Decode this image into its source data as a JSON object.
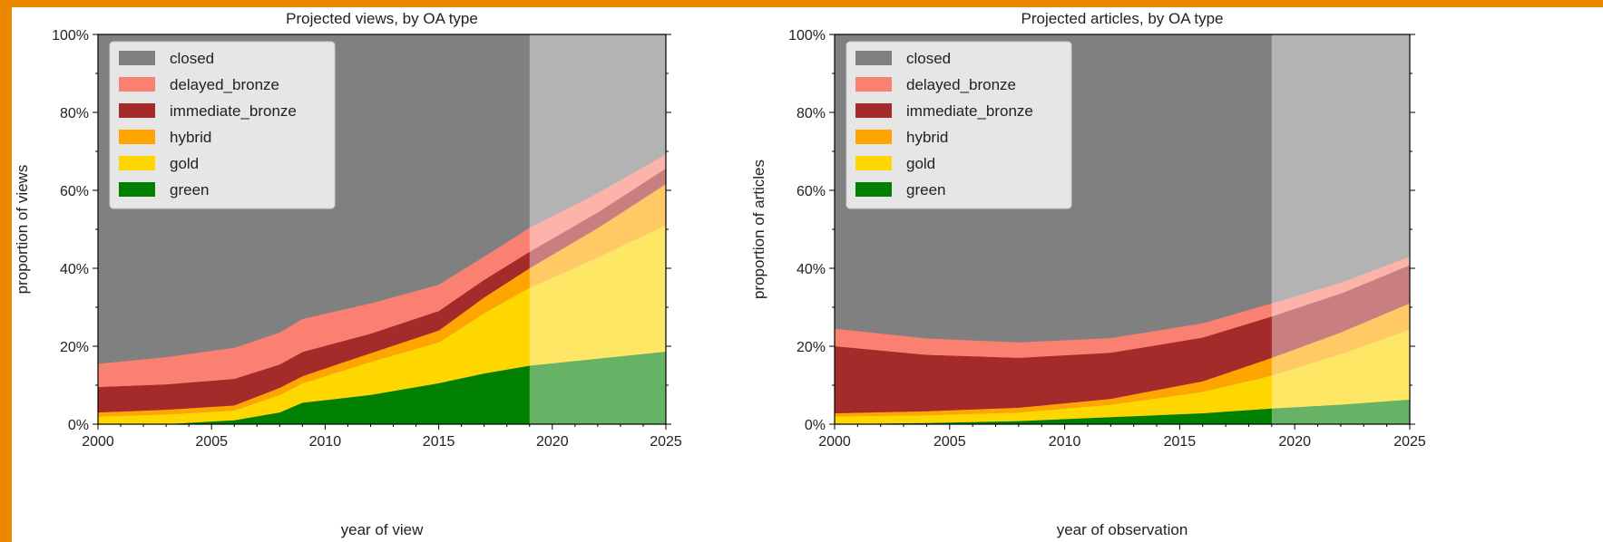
{
  "colors": {
    "frame_border": "#EE8700",
    "figure_bg": "#FFFFFF",
    "plot_bg": "#808080",
    "projection_overlay": "#FFFFFF"
  },
  "chart_data": [
    {
      "type": "area",
      "stacked": true,
      "title": "Projected views, by OA type",
      "xlabel": "year of view",
      "ylabel": "proportion of views",
      "xlim": [
        2000,
        2025
      ],
      "ylim": [
        0,
        1
      ],
      "x_ticks": [
        2000,
        2005,
        2010,
        2015,
        2020,
        2025
      ],
      "x_tick_labels": [
        "2000",
        "2005",
        "2010",
        "2015",
        "2020",
        "2025"
      ],
      "y_ticks": [
        0,
        0.2,
        0.4,
        0.6,
        0.8,
        1.0
      ],
      "y_tick_labels": [
        "0%",
        "20%",
        "40%",
        "60%",
        "80%",
        "100%"
      ],
      "projection_start": 2019,
      "legend_position": "top-left",
      "grid": false,
      "x": [
        2000,
        2003,
        2006,
        2008,
        2009,
        2012,
        2015,
        2017,
        2019,
        2022,
        2025
      ],
      "series": [
        {
          "name": "green",
          "color": "#008000",
          "values": [
            0.0,
            0.0,
            0.01,
            0.03,
            0.055,
            0.075,
            0.105,
            0.13,
            0.15,
            0.168,
            0.186
          ]
        },
        {
          "name": "gold",
          "color": "#FFD700",
          "values": [
            0.02,
            0.025,
            0.025,
            0.045,
            0.05,
            0.085,
            0.105,
            0.155,
            0.2,
            0.26,
            0.325
          ]
        },
        {
          "name": "hybrid",
          "color": "#FFA500",
          "values": [
            0.01,
            0.012,
            0.013,
            0.018,
            0.018,
            0.022,
            0.03,
            0.04,
            0.05,
            0.075,
            0.105
          ]
        },
        {
          "name": "immediate_bronze",
          "color": "#A52A2A",
          "values": [
            0.065,
            0.065,
            0.068,
            0.06,
            0.062,
            0.05,
            0.05,
            0.045,
            0.042,
            0.04,
            0.04
          ]
        },
        {
          "name": "delayed_bronze",
          "color": "#FA8072",
          "values": [
            0.06,
            0.07,
            0.08,
            0.082,
            0.085,
            0.078,
            0.068,
            0.06,
            0.062,
            0.05,
            0.036
          ]
        },
        {
          "name": "closed",
          "color": "#808080",
          "values": [
            0.845,
            0.828,
            0.804,
            0.765,
            0.73,
            0.69,
            0.642,
            0.57,
            0.496,
            0.407,
            0.308
          ]
        }
      ]
    },
    {
      "type": "area",
      "stacked": true,
      "title": "Projected articles, by OA type",
      "xlabel": "year of observation",
      "ylabel": "proportion of articles",
      "xlim": [
        2000,
        2025
      ],
      "ylim": [
        0,
        1
      ],
      "x_ticks": [
        2000,
        2005,
        2010,
        2015,
        2020,
        2025
      ],
      "x_tick_labels": [
        "2000",
        "2005",
        "2010",
        "2015",
        "2020",
        "2025"
      ],
      "y_ticks": [
        0,
        0.2,
        0.4,
        0.6,
        0.8,
        1.0
      ],
      "y_tick_labels": [
        "0%",
        "20%",
        "40%",
        "60%",
        "80%",
        "100%"
      ],
      "projection_start": 2019,
      "legend_position": "top-left",
      "grid": false,
      "x": [
        2000,
        2004,
        2008,
        2012,
        2016,
        2019,
        2022,
        2025
      ],
      "series": [
        {
          "name": "green",
          "color": "#008000",
          "values": [
            0.0,
            0.003,
            0.008,
            0.018,
            0.028,
            0.04,
            0.05,
            0.063
          ]
        },
        {
          "name": "gold",
          "color": "#FFD700",
          "values": [
            0.02,
            0.02,
            0.022,
            0.032,
            0.055,
            0.085,
            0.13,
            0.18
          ]
        },
        {
          "name": "hybrid",
          "color": "#FFA500",
          "values": [
            0.008,
            0.01,
            0.012,
            0.015,
            0.027,
            0.045,
            0.055,
            0.067
          ]
        },
        {
          "name": "immediate_bronze",
          "color": "#A52A2A",
          "values": [
            0.172,
            0.145,
            0.128,
            0.118,
            0.112,
            0.106,
            0.1,
            0.098
          ]
        },
        {
          "name": "delayed_bronze",
          "color": "#FA8072",
          "values": [
            0.045,
            0.042,
            0.04,
            0.038,
            0.037,
            0.034,
            0.028,
            0.022
          ]
        },
        {
          "name": "closed",
          "color": "#808080",
          "values": [
            0.755,
            0.78,
            0.79,
            0.779,
            0.741,
            0.69,
            0.637,
            0.57
          ]
        }
      ]
    }
  ]
}
